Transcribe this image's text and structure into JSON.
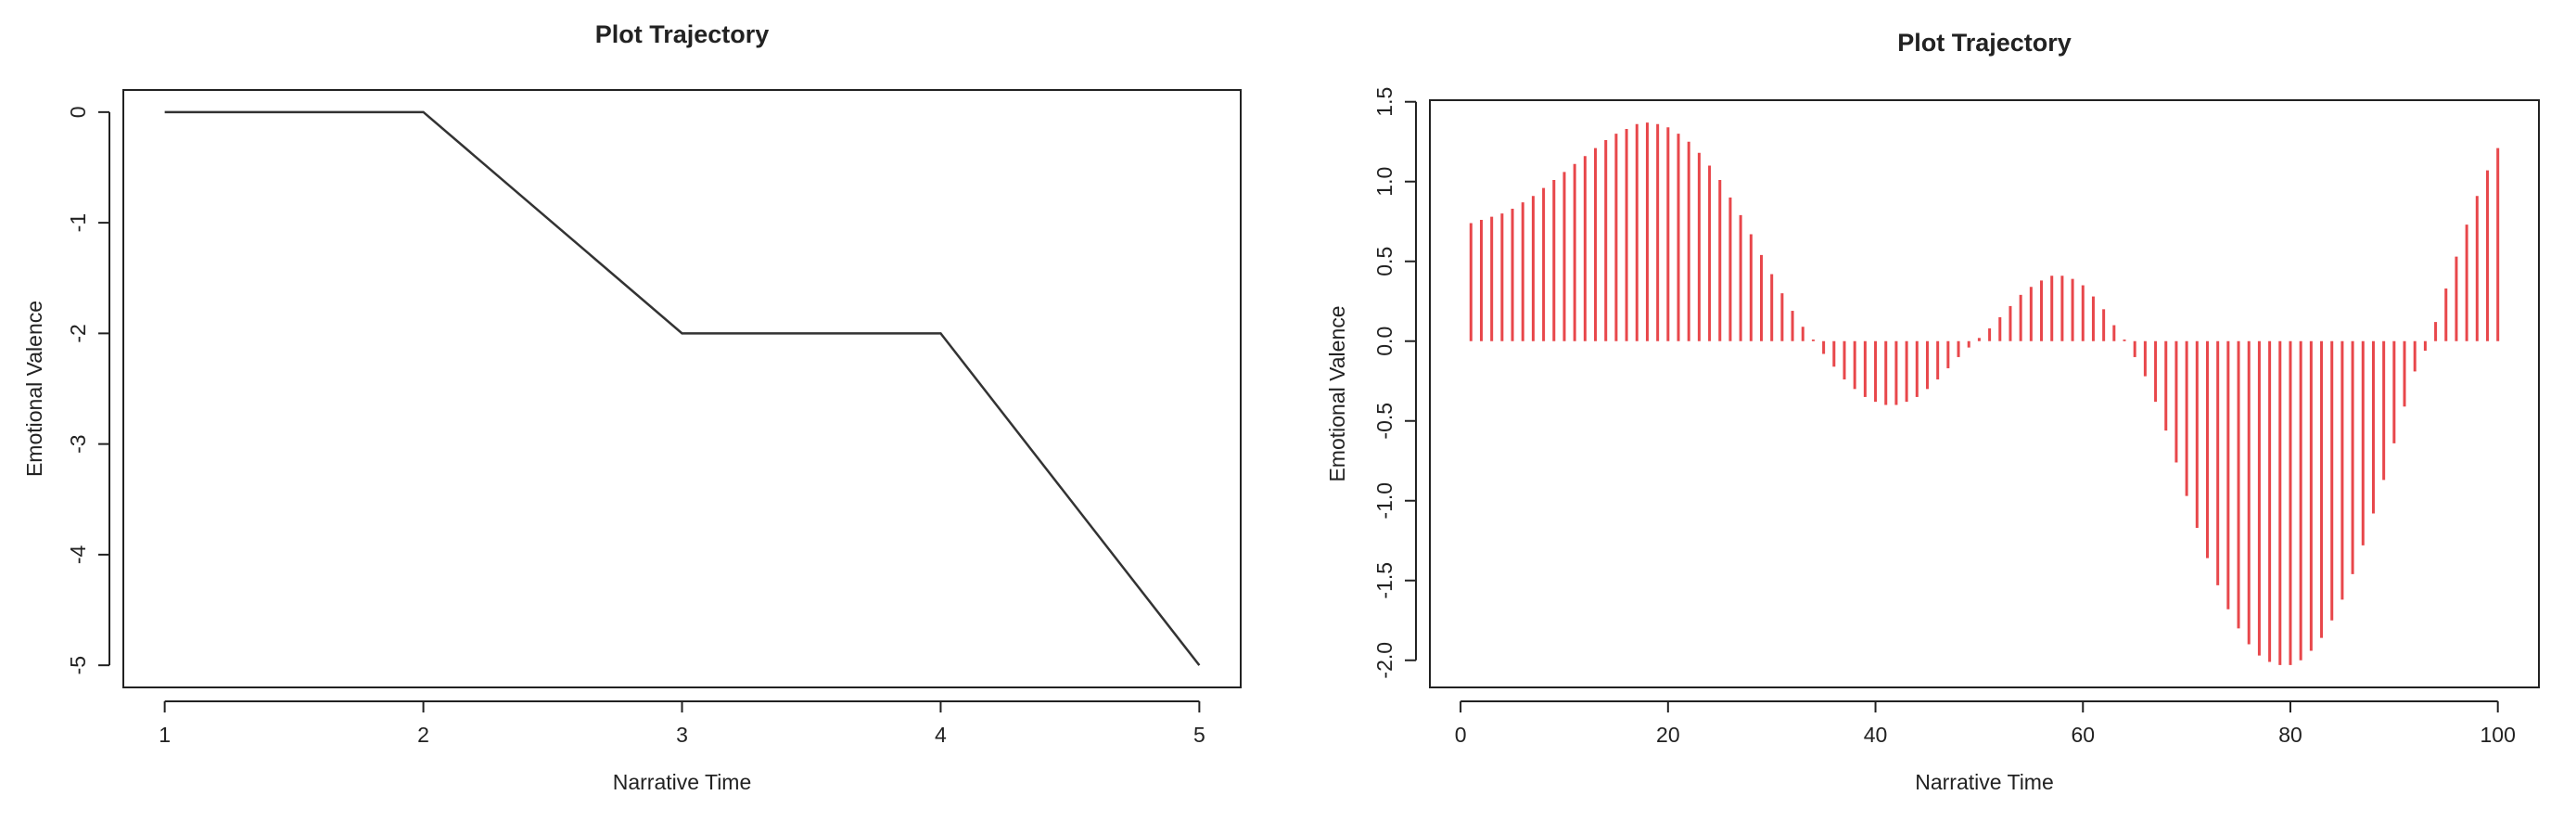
{
  "chart_data": [
    {
      "type": "line",
      "title": "Plot Trajectory",
      "x_label": "Narrative Time",
      "y_label": "Emotional Valence",
      "color": "#333333",
      "x": [
        1,
        2,
        3,
        4,
        5
      ],
      "values": [
        0,
        0,
        -2,
        -2,
        -5
      ],
      "xlim": [
        0.84,
        5.16
      ],
      "ylim": [
        -5.2,
        0.2
      ],
      "xticks": [
        1,
        2,
        3,
        4,
        5
      ],
      "yticks": [
        0,
        -1,
        -2,
        -3,
        -4,
        -5
      ]
    },
    {
      "type": "stem",
      "title": "Plot Trajectory",
      "x_label": "Narrative Time",
      "y_label": "Emotional Valence",
      "color": "#e8474b",
      "x": [
        1,
        2,
        3,
        4,
        5,
        6,
        7,
        8,
        9,
        10,
        11,
        12,
        13,
        14,
        15,
        16,
        17,
        18,
        19,
        20,
        21,
        22,
        23,
        24,
        25,
        26,
        27,
        28,
        29,
        30,
        31,
        32,
        33,
        34,
        35,
        36,
        37,
        38,
        39,
        40,
        41,
        42,
        43,
        44,
        45,
        46,
        47,
        48,
        49,
        50,
        51,
        52,
        53,
        54,
        55,
        56,
        57,
        58,
        59,
        60,
        61,
        62,
        63,
        64,
        65,
        66,
        67,
        68,
        69,
        70,
        71,
        72,
        73,
        74,
        75,
        76,
        77,
        78,
        79,
        80,
        81,
        82,
        83,
        84,
        85,
        86,
        87,
        88,
        89,
        90,
        91,
        92,
        93,
        94,
        95,
        96,
        97,
        98,
        99,
        100
      ],
      "values": [
        0.74,
        0.76,
        0.78,
        0.8,
        0.83,
        0.87,
        0.91,
        0.96,
        1.01,
        1.06,
        1.11,
        1.16,
        1.21,
        1.26,
        1.3,
        1.33,
        1.36,
        1.37,
        1.36,
        1.34,
        1.3,
        1.25,
        1.18,
        1.1,
        1.01,
        0.9,
        0.79,
        0.67,
        0.54,
        0.42,
        0.3,
        0.19,
        0.09,
        0.01,
        -0.08,
        -0.16,
        -0.24,
        -0.3,
        -0.35,
        -0.38,
        -0.4,
        -0.4,
        -0.38,
        -0.35,
        -0.3,
        -0.24,
        -0.17,
        -0.1,
        -0.04,
        0.02,
        0.08,
        0.15,
        0.22,
        0.29,
        0.34,
        0.38,
        0.41,
        0.41,
        0.39,
        0.35,
        0.28,
        0.2,
        0.1,
        0.01,
        -0.1,
        -0.22,
        -0.38,
        -0.56,
        -0.76,
        -0.97,
        -1.17,
        -1.36,
        -1.53,
        -1.68,
        -1.8,
        -1.9,
        -1.97,
        -2.01,
        -2.03,
        -2.03,
        -2.0,
        -1.94,
        -1.86,
        -1.75,
        -1.62,
        -1.46,
        -1.28,
        -1.08,
        -0.87,
        -0.64,
        -0.41,
        -0.19,
        -0.06,
        0.12,
        0.33,
        0.53,
        0.73,
        0.91,
        1.07,
        1.21
      ],
      "xlim": [
        -2.96,
        103.96
      ],
      "ylim": [
        -2.17,
        1.51
      ],
      "xticks": [
        0,
        20,
        40,
        60,
        80,
        100
      ],
      "yticks": [
        {
          "value": -2,
          "label": "-2.0"
        },
        -1.5,
        {
          "value": -1,
          "label": "-1.0"
        },
        -0.5,
        {
          "value": 0,
          "label": "0.0"
        },
        0.5,
        {
          "value": 1,
          "label": "1.0"
        },
        1.5
      ]
    }
  ]
}
